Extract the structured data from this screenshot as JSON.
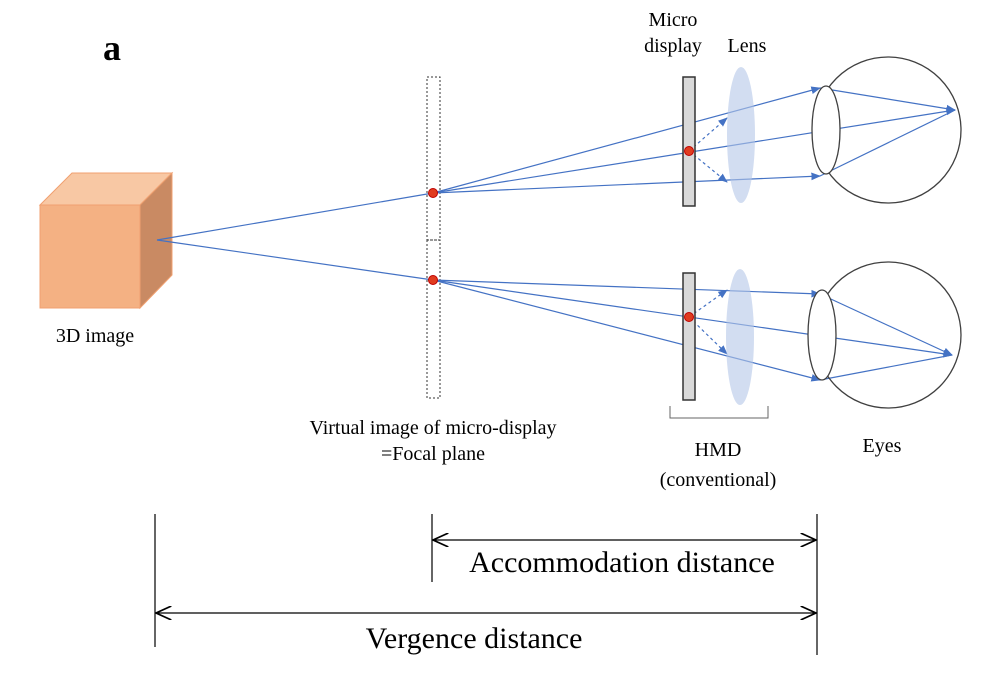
{
  "panel_label": "a",
  "labels": {
    "micro_display": [
      "Micro",
      "display"
    ],
    "lens": "Lens",
    "image_3d": "3D image",
    "virtual_image": [
      "Virtual image of micro-display",
      "=Focal plane"
    ],
    "hmd": [
      "HMD",
      "(conventional)"
    ],
    "eyes": "Eyes"
  },
  "distances": {
    "accommodation": "Accommodation distance",
    "vergence": "Vergence distance"
  }
}
